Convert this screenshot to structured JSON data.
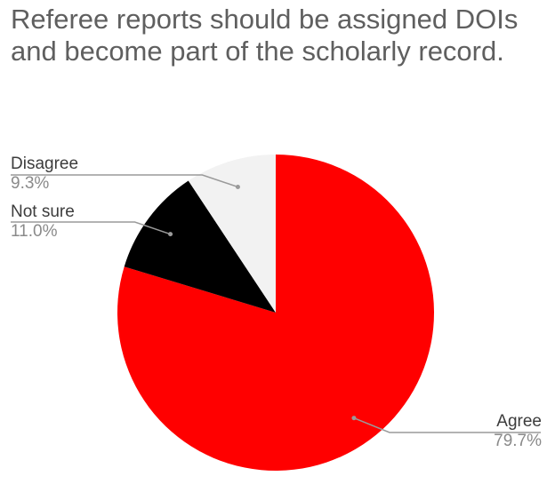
{
  "chart_data": {
    "type": "pie",
    "title": "Referee reports should be assigned DOIs and become part of the scholarly record.",
    "slices": [
      {
        "label": "Agree",
        "value": 79.7,
        "value_label": "79.7%",
        "color": "#ff0000"
      },
      {
        "label": "Not sure",
        "value": 11.0,
        "value_label": "11.0%",
        "color": "#000000"
      },
      {
        "label": "Disagree",
        "value": 9.3,
        "value_label": "9.3%",
        "color": "#f2f2f2"
      }
    ],
    "start_angle_deg": 0,
    "direction": "clockwise"
  }
}
